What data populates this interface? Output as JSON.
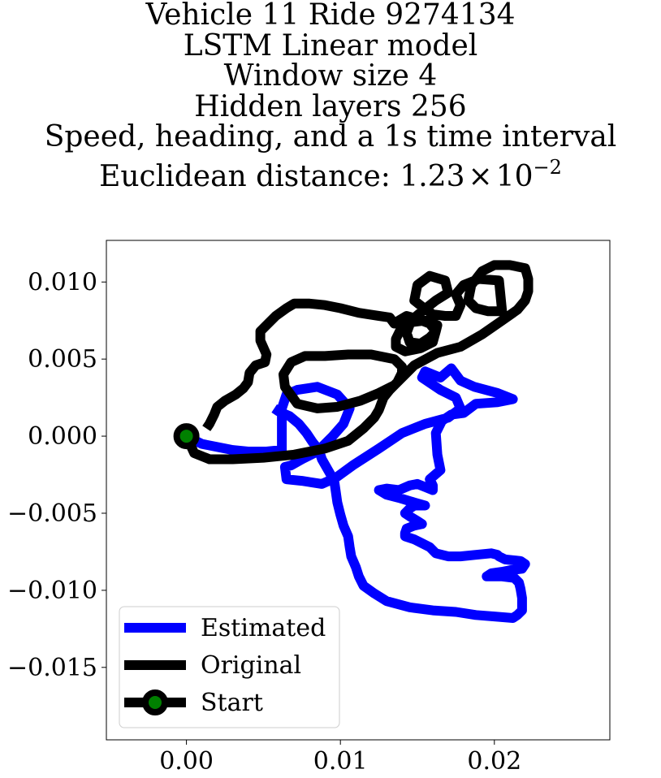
{
  "chart_data": {
    "type": "line",
    "title_lines": [
      "Vehicle 11 Ride 9274134",
      "LSTM Linear model",
      "Window size 4",
      "Hidden layers 256",
      "Speed, heading, and a 1s time interval"
    ],
    "title_distance_prefix": "Euclidean distance: 1.23",
    "title_distance_times": "×",
    "title_distance_base": "10",
    "title_distance_exponent": "−2",
    "xlim": [
      -0.0052,
      0.0275
    ],
    "ylim": [
      -0.0197,
      0.0127
    ],
    "x_ticks": [
      0.0,
      0.01,
      0.02
    ],
    "x_tick_labels": [
      "0.00",
      "0.01",
      "0.02"
    ],
    "y_ticks": [
      0.01,
      0.005,
      0.0,
      -0.005,
      -0.01,
      -0.015
    ],
    "y_tick_labels": [
      "0.010",
      "0.005",
      "0.000",
      "−0.005",
      "−0.010",
      "−0.015"
    ],
    "grid": false,
    "legend_position": "lower-left",
    "colors": {
      "estimated": "#0000ff",
      "original": "#000000",
      "start_marker": "#008000"
    },
    "series": [
      {
        "name": "Estimated",
        "color": "#0000ff",
        "x": [
          0.0,
          0.001,
          0.002,
          0.003,
          0.004,
          0.0052,
          0.0062,
          0.0062,
          0.0062,
          0.0065,
          0.0072,
          0.0085,
          0.0098,
          0.0106,
          0.0102,
          0.0095,
          0.0085,
          0.0075,
          0.0068,
          0.0064,
          0.0065,
          0.0075,
          0.0088,
          0.0097,
          0.0108,
          0.0125,
          0.014,
          0.0155,
          0.017,
          0.0178,
          0.0175,
          0.0165,
          0.0153,
          0.0155,
          0.0165,
          0.0172,
          0.0178,
          0.0187,
          0.0202,
          0.0212,
          0.0202,
          0.0188,
          0.018,
          0.0172,
          0.0166,
          0.0162,
          0.0163,
          0.0165,
          0.0158,
          0.016,
          0.016,
          0.0155,
          0.015,
          0.0145,
          0.0138,
          0.013,
          0.0125,
          0.013,
          0.0138,
          0.0148,
          0.0155,
          0.0148,
          0.0145,
          0.0142,
          0.0145,
          0.015,
          0.0153,
          0.0148,
          0.0143,
          0.0142,
          0.0142,
          0.0148,
          0.0152,
          0.0158,
          0.0162,
          0.017,
          0.0178,
          0.0188,
          0.0198,
          0.0202,
          0.0203,
          0.0207,
          0.0217,
          0.022,
          0.0218,
          0.021,
          0.0205,
          0.0198,
          0.0195,
          0.0205,
          0.0213,
          0.0216,
          0.0217,
          0.0218,
          0.0218,
          0.0215,
          0.0212,
          0.02,
          0.0188,
          0.0175,
          0.016,
          0.0145,
          0.013,
          0.0122,
          0.0115,
          0.0112,
          0.011,
          0.0107,
          0.0106,
          0.0105,
          0.0102,
          0.01,
          0.0098,
          0.0097,
          0.0096,
          0.0092,
          0.0088,
          0.0086,
          0.0082,
          0.0078,
          0.0073,
          0.0067,
          0.006,
          0.0057
        ],
        "y": [
          0.0,
          -0.0005,
          -0.0007,
          -0.0009,
          -0.001,
          -0.001,
          -0.0009,
          0.0005,
          0.0018,
          0.0027,
          0.003,
          0.0032,
          0.0027,
          0.0018,
          0.0008,
          0.0,
          -0.001,
          -0.0015,
          -0.0019,
          -0.002,
          -0.0028,
          -0.0029,
          -0.0031,
          -0.0027,
          -0.0019,
          -0.0008,
          0.0002,
          0.0008,
          0.0012,
          0.0018,
          0.0025,
          0.003,
          0.0038,
          0.0042,
          0.0038,
          0.0044,
          0.0036,
          0.0032,
          0.0028,
          0.0024,
          0.0022,
          0.0021,
          0.0015,
          0.0014,
          0.001,
          0.0002,
          -0.0012,
          -0.0022,
          -0.0028,
          -0.0032,
          -0.0035,
          -0.0033,
          -0.0031,
          -0.0032,
          -0.0035,
          -0.0034,
          -0.0035,
          -0.0038,
          -0.004,
          -0.0043,
          -0.0045,
          -0.0045,
          -0.0047,
          -0.005,
          -0.0052,
          -0.0055,
          -0.0057,
          -0.0058,
          -0.006,
          -0.0063,
          -0.0065,
          -0.0067,
          -0.0069,
          -0.0072,
          -0.0076,
          -0.0078,
          -0.0078,
          -0.0077,
          -0.0076,
          -0.0077,
          -0.0078,
          -0.008,
          -0.0081,
          -0.0083,
          -0.0086,
          -0.0087,
          -0.0088,
          -0.0089,
          -0.0091,
          -0.0091,
          -0.0092,
          -0.0095,
          -0.0099,
          -0.0105,
          -0.0113,
          -0.0116,
          -0.0118,
          -0.0117,
          -0.0116,
          -0.0114,
          -0.0113,
          -0.0111,
          -0.0107,
          -0.0102,
          -0.0097,
          -0.0091,
          -0.0085,
          -0.0078,
          -0.0072,
          -0.0065,
          -0.0058,
          -0.0051,
          -0.0043,
          -0.0036,
          -0.0029,
          -0.0022,
          -0.0015,
          -0.0009,
          -0.0004,
          0.0002,
          0.0008,
          0.0013,
          0.0016,
          0.0018
        ]
      },
      {
        "name": "Original",
        "color": "#000000",
        "x": [
          0.0,
          0.0005,
          0.0015,
          0.003,
          0.005,
          0.007,
          0.009,
          0.0105,
          0.0115,
          0.0122,
          0.0125,
          0.0128,
          0.0132,
          0.0137,
          0.014,
          0.014,
          0.0135,
          0.012,
          0.0105,
          0.009,
          0.0077,
          0.0068,
          0.0063,
          0.0064,
          0.0072,
          0.0085,
          0.0098,
          0.0113,
          0.0125,
          0.0135,
          0.0148,
          0.0163,
          0.0178,
          0.0192,
          0.0205,
          0.0215,
          0.022,
          0.0222,
          0.0222,
          0.022,
          0.021,
          0.02,
          0.0192,
          0.0185,
          0.0183,
          0.0188,
          0.0196,
          0.0205,
          0.0203,
          0.019,
          0.018,
          0.0175,
          0.0178,
          0.0175,
          0.0168,
          0.016,
          0.0153,
          0.0148,
          0.015,
          0.0158,
          0.0168,
          0.017,
          0.0162,
          0.0153,
          0.0146,
          0.0143,
          0.0145,
          0.0152,
          0.0158,
          0.0162,
          0.0163,
          0.0155,
          0.0147,
          0.014,
          0.0136,
          0.0136,
          0.0142,
          0.0152,
          0.016,
          0.0162,
          0.0158,
          0.015,
          0.0143,
          0.0138,
          0.0135,
          0.0132,
          0.0125,
          0.0112,
          0.01,
          0.009,
          0.008,
          0.007,
          0.0065,
          0.0058,
          0.0052,
          0.0048,
          0.0048,
          0.0052,
          0.0051,
          0.0045,
          0.0041,
          0.004,
          0.0037,
          0.0032,
          0.0025,
          0.002,
          0.0018,
          0.0015,
          0.0013
        ],
        "y": [
          0.0,
          -0.0011,
          -0.0015,
          -0.0015,
          -0.0014,
          -0.0012,
          -0.0008,
          -0.0003,
          0.0005,
          0.0012,
          0.0017,
          0.0025,
          0.003,
          0.0035,
          0.0041,
          0.0045,
          0.005,
          0.0053,
          0.0053,
          0.0052,
          0.0052,
          0.0048,
          0.004,
          0.0032,
          0.0021,
          0.0018,
          0.0019,
          0.0023,
          0.0028,
          0.0033,
          0.0046,
          0.0054,
          0.0058,
          0.0066,
          0.0075,
          0.0082,
          0.0088,
          0.0094,
          0.0102,
          0.0109,
          0.0111,
          0.0111,
          0.0107,
          0.0098,
          0.0088,
          0.0083,
          0.0081,
          0.0081,
          0.0101,
          0.0102,
          0.0098,
          0.0092,
          0.0085,
          0.0078,
          0.0078,
          0.0079,
          0.0084,
          0.0088,
          0.0098,
          0.0104,
          0.0101,
          0.0093,
          0.0088,
          0.0081,
          0.0075,
          0.0067,
          0.0061,
          0.006,
          0.0064,
          0.0068,
          0.0072,
          0.0075,
          0.0074,
          0.0071,
          0.0063,
          0.0058,
          0.0055,
          0.0057,
          0.0061,
          0.0068,
          0.0073,
          0.0076,
          0.0078,
          0.0075,
          0.0073,
          0.0077,
          0.0078,
          0.008,
          0.0083,
          0.0085,
          0.0086,
          0.0086,
          0.0083,
          0.0078,
          0.0072,
          0.0068,
          0.0062,
          0.0053,
          0.0048,
          0.0046,
          0.0041,
          0.0035,
          0.0031,
          0.0027,
          0.0023,
          0.0019,
          0.0014,
          0.0008,
          0.0005
        ]
      }
    ],
    "start_point": {
      "x": 0.0,
      "y": 0.0
    },
    "legend": [
      {
        "label": "Estimated",
        "kind": "line",
        "color": "#0000ff"
      },
      {
        "label": "Original",
        "kind": "line",
        "color": "#000000"
      },
      {
        "label": "Start",
        "kind": "line-marker",
        "color": "#000000",
        "marker_color": "#008000"
      }
    ]
  }
}
